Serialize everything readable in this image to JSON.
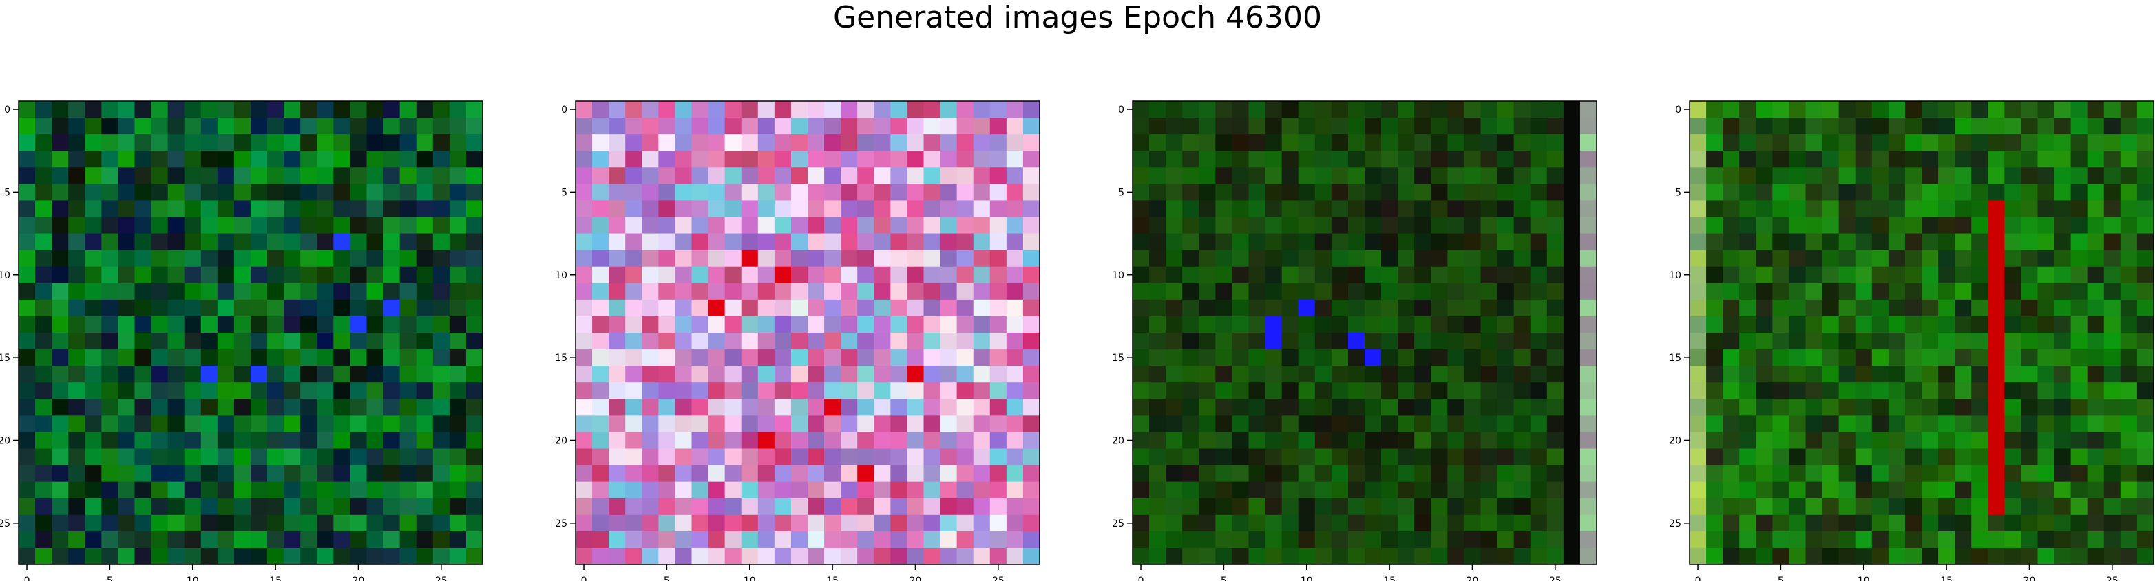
{
  "figure": {
    "title": "Generated images Epoch 46300"
  },
  "chart_data": [
    {
      "type": "heatmap",
      "title": "",
      "xlabel": "",
      "ylabel": "",
      "xlim": [
        -0.5,
        27.5
      ],
      "ylim": [
        27.5,
        -0.5
      ],
      "grid": false,
      "xticks": [
        0,
        5,
        10,
        15,
        20,
        25
      ],
      "yticks": [
        0,
        5,
        10,
        15,
        20,
        25
      ],
      "size": [
        28,
        28
      ],
      "palette": "green",
      "base_color": "#0a5a2a",
      "highlight_color": "#1f3cff",
      "highlight_cells": [
        [
          8,
          19
        ],
        [
          13,
          20
        ],
        [
          16,
          11
        ],
        [
          16,
          14
        ],
        [
          12,
          22
        ]
      ]
    },
    {
      "type": "heatmap",
      "title": "",
      "xlabel": "",
      "ylabel": "",
      "xlim": [
        -0.5,
        27.5
      ],
      "ylim": [
        27.5,
        -0.5
      ],
      "grid": false,
      "xticks": [
        0,
        5,
        10,
        15,
        20,
        25
      ],
      "yticks": [
        0,
        5,
        10,
        15,
        20,
        25
      ],
      "size": [
        28,
        28
      ],
      "palette": "pink",
      "base_color": "#e07ab8",
      "highlight_color": "#e00010",
      "highlight_cells": [
        [
          9,
          10
        ],
        [
          10,
          12
        ],
        [
          12,
          8
        ],
        [
          18,
          15
        ],
        [
          20,
          11
        ],
        [
          16,
          20
        ],
        [
          22,
          17
        ]
      ]
    },
    {
      "type": "heatmap",
      "title": "",
      "xlabel": "",
      "ylabel": "",
      "xlim": [
        -0.5,
        27.5
      ],
      "ylim": [
        27.5,
        -0.5
      ],
      "grid": false,
      "xticks": [
        0,
        5,
        10,
        15,
        20,
        25
      ],
      "yticks": [
        0,
        5,
        10,
        15,
        20,
        25
      ],
      "size": [
        28,
        28
      ],
      "palette": "darkgreen",
      "base_color": "#063a06",
      "highlight_color": "#1b1bff",
      "highlight_cells": [
        [
          13,
          8
        ],
        [
          14,
          8
        ],
        [
          14,
          13
        ],
        [
          15,
          14
        ],
        [
          12,
          10
        ]
      ]
    },
    {
      "type": "heatmap",
      "title": "",
      "xlabel": "",
      "ylabel": "",
      "xlim": [
        -0.5,
        27.5
      ],
      "ylim": [
        27.5,
        -0.5
      ],
      "grid": false,
      "xticks": [
        0,
        5,
        10,
        15,
        20,
        25
      ],
      "yticks": [
        0,
        5,
        10,
        15,
        20,
        25
      ],
      "size": [
        28,
        28
      ],
      "palette": "green_red",
      "base_color": "#0b4a0b",
      "highlight_color": "#cc0000",
      "highlight_rows": [
        6,
        24
      ],
      "highlight_col": 18
    }
  ]
}
